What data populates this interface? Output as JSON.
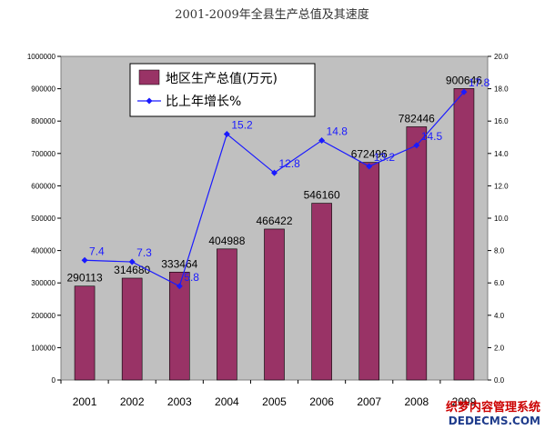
{
  "chart_data": {
    "type": "bar",
    "title": "2001-2009年全县生产总值及其速度",
    "categories": [
      "2001",
      "2002",
      "2003",
      "2004",
      "2005",
      "2006",
      "2007",
      "2008",
      "2009"
    ],
    "series": [
      {
        "name": "地区生产总值(万元)",
        "type": "bar",
        "axis": "left",
        "values": [
          290113,
          314680,
          333464,
          404988,
          466422,
          546160,
          672496,
          782446,
          900646
        ],
        "labels": [
          "290113",
          "314680",
          "333464",
          "404988",
          "466422",
          "546160",
          "672496",
          "782446",
          "900646"
        ],
        "color": "#993366"
      },
      {
        "name": "比上年增长%",
        "type": "line",
        "axis": "right",
        "values": [
          7.4,
          7.3,
          5.8,
          15.2,
          12.8,
          14.8,
          13.2,
          14.5,
          17.8
        ],
        "labels": [
          "7.4",
          "7.3",
          "5.8",
          "15.2",
          "12.8",
          "14.8",
          "13.2",
          "14.5",
          "17.8"
        ],
        "color": "#1a1aff"
      }
    ],
    "ylim_left": [
      0,
      1000000
    ],
    "ylim_right": [
      0,
      20
    ],
    "left_ticks": [
      "0",
      "100000",
      "200000",
      "300000",
      "400000",
      "500000",
      "600000",
      "700000",
      "800000",
      "900000",
      "1000000"
    ],
    "right_ticks": [
      "0.0",
      "2.0",
      "4.0",
      "6.0",
      "8.0",
      "10.0",
      "12.0",
      "14.0",
      "16.0",
      "18.0",
      "20.0"
    ],
    "plot_background": "#c0c0c0",
    "grid": false,
    "legend_position": "top-left"
  },
  "watermark": {
    "line1": "织梦内容管理系统",
    "line2": "DEDECMS.COM"
  }
}
